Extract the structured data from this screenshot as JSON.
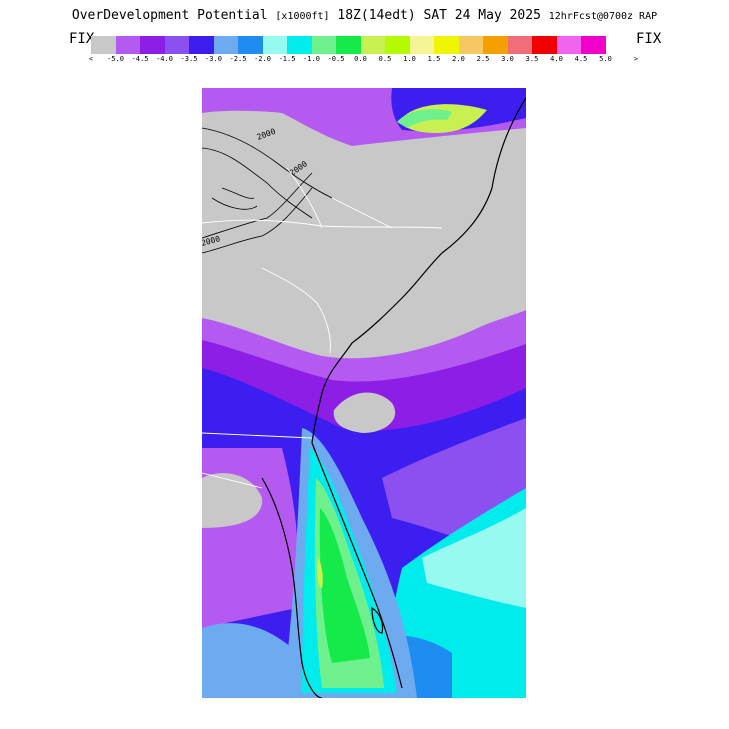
{
  "header": {
    "title_main": "OverDevelopment Potential",
    "title_units": "[x1000ft]",
    "title_time": "18Z(14edt) SAT 24 May 2025",
    "title_fcst": "12hrFcst@0700z RAP"
  },
  "colorbar": {
    "fix_left": "FIX",
    "fix_right": "FIX",
    "arrow_left": "<",
    "arrow_right": ">",
    "colors": [
      "#c8c8c8",
      "#b45af0",
      "#8c1ee6",
      "#8c50f0",
      "#3c1ef0",
      "#6eaaf0",
      "#1e8cf0",
      "#96faf0",
      "#00ebeb",
      "#6ef08c",
      "#14eb4b",
      "#c8f050",
      "#b4fa00",
      "#f5f596",
      "#f0f500",
      "#f5c864",
      "#f5a000",
      "#f06e78",
      "#f00000",
      "#f064f0",
      "#f000c8"
    ],
    "labels": [
      "-5.0",
      "-4.5",
      "-4.0",
      "-3.5",
      "-3.0",
      "-2.5",
      "-2.0",
      "-1.5",
      "-1.0",
      "-0.5",
      "0.0",
      "0.5",
      "1.0",
      "1.5",
      "2.0",
      "2.5",
      "3.0",
      "3.5",
      "4.0",
      "4.5",
      "5.0"
    ]
  },
  "map": {
    "contour_labels": [
      "2000",
      "2000",
      "2000"
    ]
  }
}
